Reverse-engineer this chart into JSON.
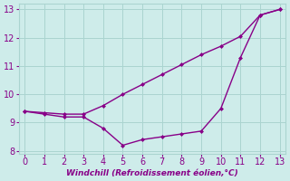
{
  "xlabel": "Windchill (Refroidissement éolien,°C)",
  "background_color": "#ceecea",
  "grid_color": "#aad4d0",
  "line_color": "#880088",
  "x_actual": [
    0,
    1,
    2,
    3,
    4,
    5,
    6,
    7,
    8,
    9,
    10,
    11,
    12,
    13
  ],
  "y_actual": [
    9.4,
    9.35,
    9.3,
    9.3,
    9.6,
    10.0,
    10.35,
    10.7,
    11.05,
    11.4,
    11.7,
    12.05,
    12.8,
    13.0
  ],
  "x_windchill": [
    0,
    1,
    2,
    3,
    4,
    5,
    6,
    7,
    8,
    9,
    10,
    11,
    12,
    13
  ],
  "y_windchill": [
    9.4,
    9.3,
    9.2,
    9.2,
    8.8,
    8.2,
    8.4,
    8.5,
    8.6,
    8.7,
    9.5,
    11.3,
    12.8,
    13.0
  ],
  "xlim": [
    0,
    13
  ],
  "ylim": [
    7.9,
    13.2
  ],
  "xticks": [
    0,
    1,
    2,
    3,
    4,
    5,
    6,
    7,
    8,
    9,
    10,
    11,
    12,
    13
  ],
  "yticks": [
    8,
    9,
    10,
    11,
    12,
    13
  ],
  "tick_fontsize": 7,
  "xlabel_fontsize": 6.5
}
